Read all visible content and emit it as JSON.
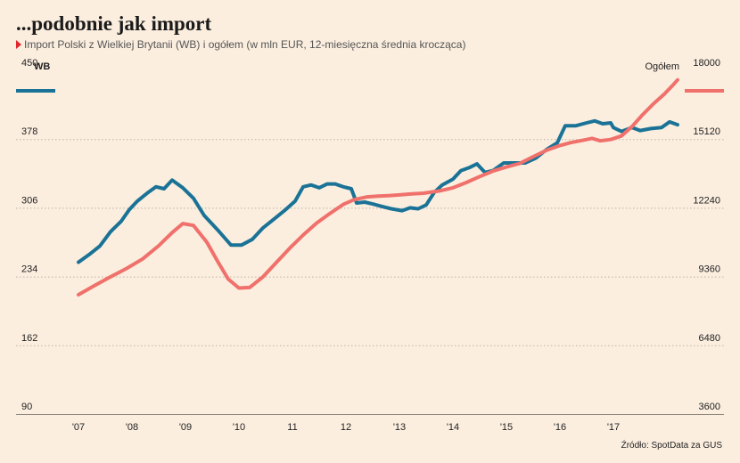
{
  "title": "...podobnie jak import",
  "subtitle": "Import Polski z Wielkiej Brytanii (WB) i ogółem (w mln EUR, 12-miesięczna średnia krocząca)",
  "source": "Źródło: SpotData za GUS",
  "colors": {
    "wb": "#1a7396",
    "total": "#f0706b",
    "grid": "#b9b2a8",
    "background": "#fbeedf"
  },
  "chart_data": {
    "type": "line",
    "grid": true,
    "legend": "axis labels top-left (WB) and top-right (Ogółem)",
    "x_tick_labels": [
      "'07",
      "'08",
      "'09",
      "'10",
      "11",
      "12",
      "'13",
      "'14",
      "'15",
      "'16",
      "'17"
    ],
    "left_axis": {
      "label": "WB",
      "ticks": [
        "450",
        "378",
        "306",
        "234",
        "162",
        "90"
      ],
      "range": [
        90,
        450
      ]
    },
    "right_axis": {
      "label": "Ogółem",
      "ticks": [
        "18000",
        "15120",
        "12240",
        "9360",
        "6480",
        "3600"
      ],
      "range": [
        3600,
        18000
      ]
    },
    "series": [
      {
        "name": "WB",
        "axis": "left",
        "points": [
          [
            2007.0,
            249
          ],
          [
            2007.2,
            257
          ],
          [
            2007.4,
            266
          ],
          [
            2007.6,
            281
          ],
          [
            2007.8,
            292
          ],
          [
            2007.95,
            304
          ],
          [
            2008.1,
            313
          ],
          [
            2008.3,
            322
          ],
          [
            2008.45,
            328
          ],
          [
            2008.6,
            326
          ],
          [
            2008.75,
            335
          ],
          [
            2008.95,
            327
          ],
          [
            2009.15,
            316
          ],
          [
            2009.35,
            298
          ],
          [
            2009.6,
            283
          ],
          [
            2009.85,
            267
          ],
          [
            2010.05,
            267
          ],
          [
            2010.25,
            273
          ],
          [
            2010.45,
            285
          ],
          [
            2010.65,
            294
          ],
          [
            2010.85,
            303
          ],
          [
            2011.05,
            313
          ],
          [
            2011.2,
            328
          ],
          [
            2011.35,
            330
          ],
          [
            2011.5,
            327
          ],
          [
            2011.65,
            331
          ],
          [
            2011.8,
            331
          ],
          [
            2011.95,
            328
          ],
          [
            2012.1,
            326
          ],
          [
            2012.2,
            311
          ],
          [
            2012.35,
            312
          ],
          [
            2012.5,
            310
          ],
          [
            2012.7,
            307
          ],
          [
            2012.85,
            305
          ],
          [
            2013.05,
            303
          ],
          [
            2013.2,
            306
          ],
          [
            2013.35,
            305
          ],
          [
            2013.5,
            309
          ],
          [
            2013.65,
            322
          ],
          [
            2013.8,
            330
          ],
          [
            2014.0,
            336
          ],
          [
            2014.15,
            345
          ],
          [
            2014.3,
            348
          ],
          [
            2014.45,
            352
          ],
          [
            2014.6,
            343
          ],
          [
            2014.75,
            345
          ],
          [
            2014.95,
            353
          ],
          [
            2015.15,
            353
          ],
          [
            2015.35,
            353
          ],
          [
            2015.55,
            358
          ],
          [
            2015.75,
            367
          ],
          [
            2015.95,
            374
          ],
          [
            2016.1,
            392
          ],
          [
            2016.3,
            392
          ],
          [
            2016.5,
            395
          ],
          [
            2016.65,
            397
          ],
          [
            2016.8,
            394
          ],
          [
            2016.95,
            395
          ],
          [
            2017.0,
            390
          ],
          [
            2017.15,
            386
          ],
          [
            2017.35,
            390
          ],
          [
            2017.5,
            387
          ],
          [
            2017.7,
            389
          ],
          [
            2017.9,
            390
          ],
          [
            2018.05,
            396
          ],
          [
            2018.2,
            393
          ]
        ]
      },
      {
        "name": "Ogółem",
        "axis": "right",
        "points": [
          [
            2007.0,
            8600
          ],
          [
            2007.3,
            8980
          ],
          [
            2007.6,
            9350
          ],
          [
            2007.9,
            9700
          ],
          [
            2008.2,
            10100
          ],
          [
            2008.5,
            10650
          ],
          [
            2008.75,
            11200
          ],
          [
            2008.95,
            11580
          ],
          [
            2009.15,
            11500
          ],
          [
            2009.4,
            10800
          ],
          [
            2009.6,
            10000
          ],
          [
            2009.8,
            9250
          ],
          [
            2010.0,
            8880
          ],
          [
            2010.2,
            8900
          ],
          [
            2010.45,
            9350
          ],
          [
            2010.7,
            9950
          ],
          [
            2010.95,
            10550
          ],
          [
            2011.2,
            11100
          ],
          [
            2011.45,
            11600
          ],
          [
            2011.7,
            12000
          ],
          [
            2011.95,
            12380
          ],
          [
            2012.15,
            12580
          ],
          [
            2012.4,
            12700
          ],
          [
            2012.6,
            12730
          ],
          [
            2012.8,
            12750
          ],
          [
            2013.0,
            12780
          ],
          [
            2013.2,
            12820
          ],
          [
            2013.45,
            12850
          ],
          [
            2013.75,
            12950
          ],
          [
            2014.0,
            13080
          ],
          [
            2014.25,
            13300
          ],
          [
            2014.5,
            13550
          ],
          [
            2014.75,
            13780
          ],
          [
            2015.0,
            13950
          ],
          [
            2015.25,
            14100
          ],
          [
            2015.5,
            14380
          ],
          [
            2015.75,
            14650
          ],
          [
            2016.0,
            14850
          ],
          [
            2016.2,
            14970
          ],
          [
            2016.45,
            15080
          ],
          [
            2016.6,
            15150
          ],
          [
            2016.75,
            15050
          ],
          [
            2016.95,
            15100
          ],
          [
            2017.15,
            15250
          ],
          [
            2017.35,
            15650
          ],
          [
            2017.55,
            16150
          ],
          [
            2017.75,
            16600
          ],
          [
            2017.95,
            17000
          ],
          [
            2018.1,
            17350
          ],
          [
            2018.2,
            17600
          ]
        ]
      }
    ]
  }
}
